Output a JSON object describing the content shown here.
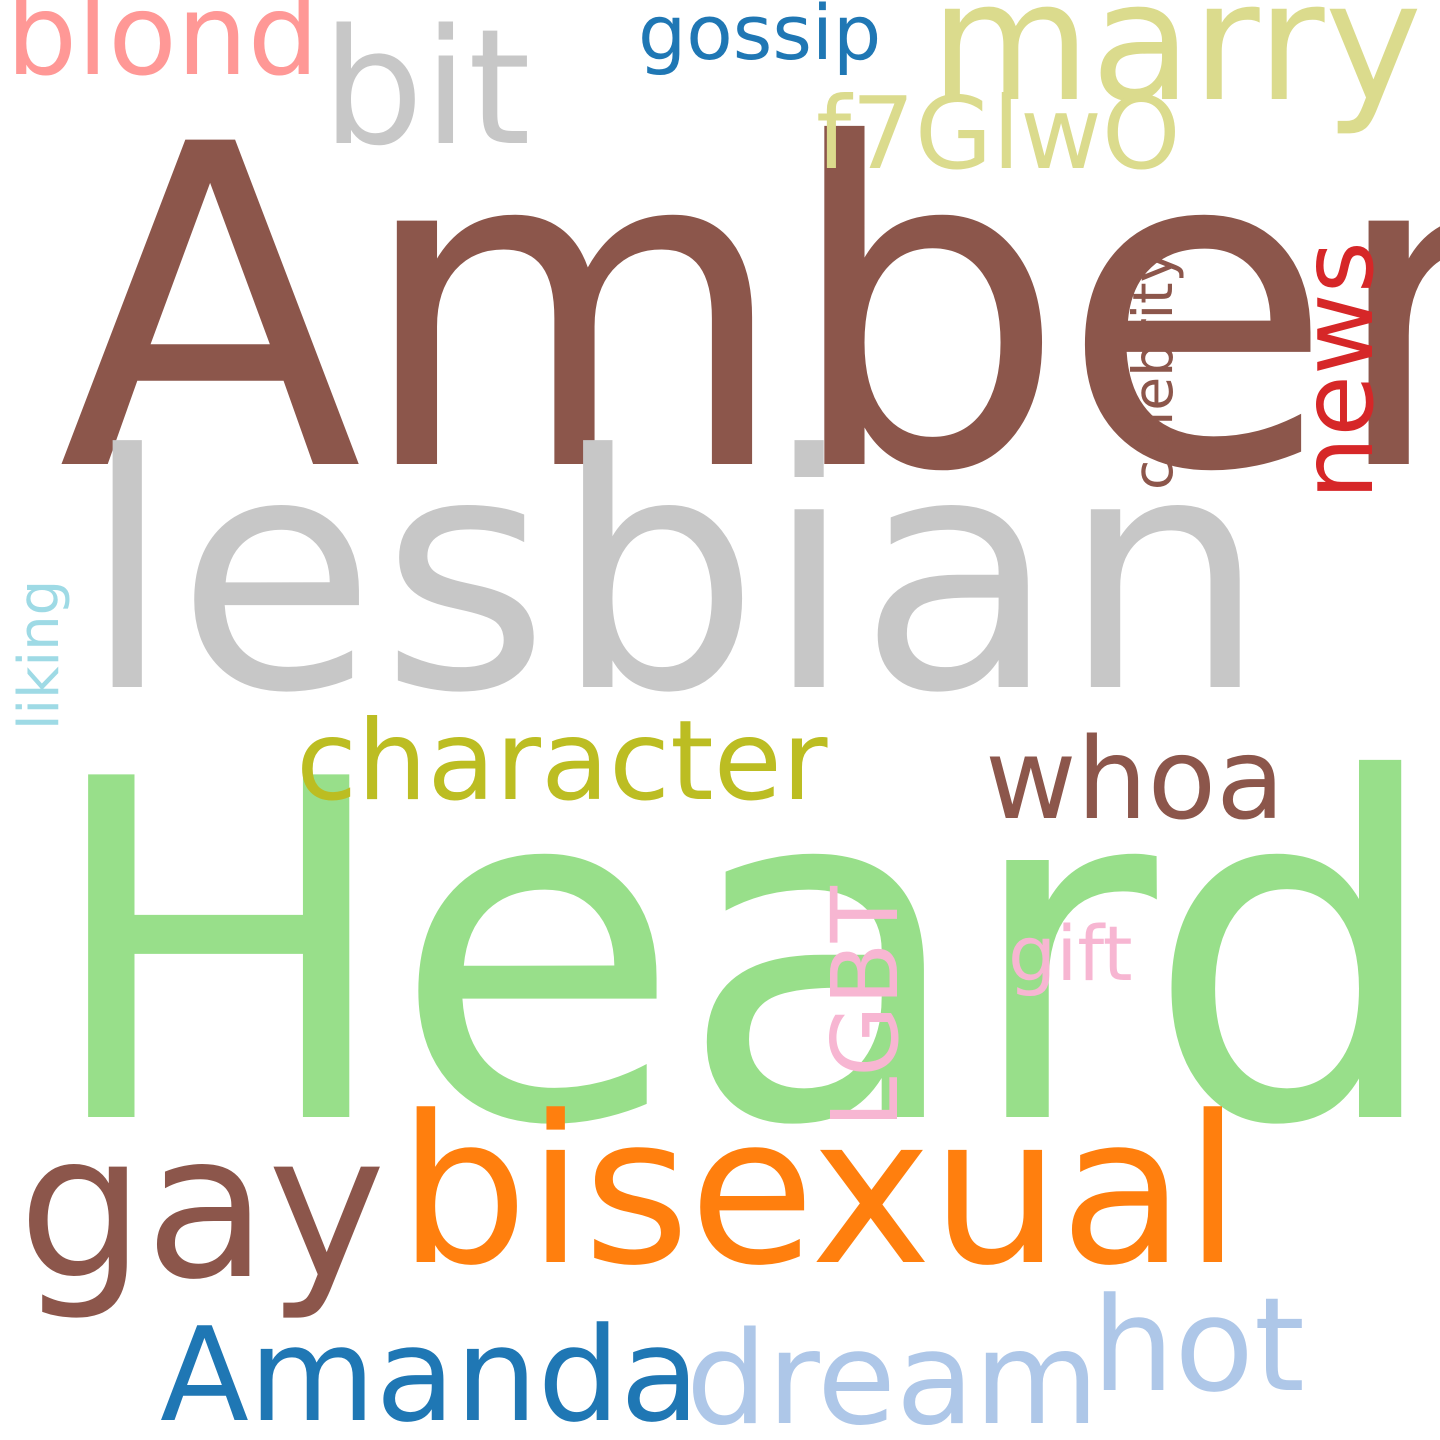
{
  "words": {
    "amber": {
      "text": "Amber",
      "color": "#8c564b"
    },
    "lesbian": {
      "text": "lesbian",
      "color": "#c7c7c7"
    },
    "heard": {
      "text": "Heard",
      "color": "#98df8a"
    },
    "bisexual": {
      "text": "bisexual",
      "color": "#ff7f0e"
    },
    "gay": {
      "text": "gay",
      "color": "#8c564b"
    },
    "character": {
      "text": "character",
      "color": "#bcbd22"
    },
    "whoa": {
      "text": "whoa",
      "color": "#8c564b"
    },
    "amanda": {
      "text": "Amanda",
      "color": "#1f77b4"
    },
    "dream": {
      "text": "dream",
      "color": "#aec7e8"
    },
    "hot": {
      "text": "hot",
      "color": "#aec7e8"
    },
    "marry": {
      "text": "marry",
      "color": "#dbdb8d"
    },
    "bit": {
      "text": "bit",
      "color": "#c7c7c7"
    },
    "blond": {
      "text": "blond",
      "color": "#ff9896"
    },
    "gossip": {
      "text": "gossip",
      "color": "#1f77b4"
    },
    "f7glw0": {
      "text": "f7GlwO",
      "color": "#dbdb8d"
    },
    "news": {
      "text": "news",
      "color": "#d62728"
    },
    "celebrity": {
      "text": "celebrity",
      "color": "#8c564b"
    },
    "lgbt": {
      "text": "LGBT",
      "color": "#f7b6d2"
    },
    "gift": {
      "text": "gift",
      "color": "#f7b6d2"
    },
    "liking": {
      "text": "liking",
      "color": "#9edae5"
    }
  }
}
